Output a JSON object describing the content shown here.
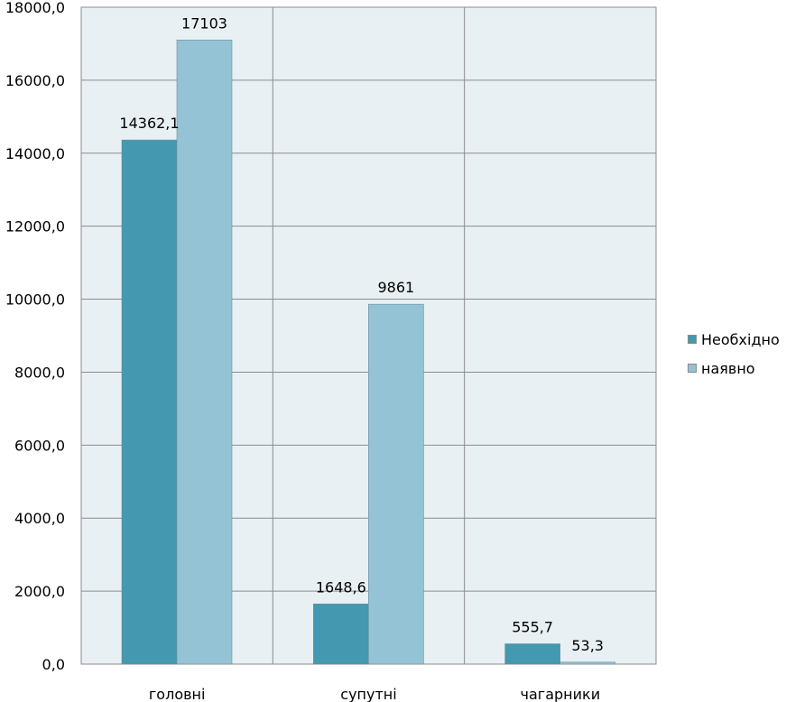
{
  "chart_data": {
    "type": "bar",
    "categories": [
      "головні",
      "супутні",
      "чагарники"
    ],
    "series": [
      {
        "name": "Необхідно",
        "values": [
          14362.1,
          1648.6,
          555.7
        ],
        "labels": [
          "14362,1",
          "1648,6",
          "555,7"
        ],
        "color": "#4499b0"
      },
      {
        "name": "наявно",
        "values": [
          17103,
          9861,
          53.3
        ],
        "labels": [
          "17103",
          "9861",
          "53,3"
        ],
        "color": "#93c3d5"
      }
    ],
    "ylim": [
      0,
      18000
    ],
    "yticks": [
      0,
      2000,
      4000,
      6000,
      8000,
      10000,
      12000,
      14000,
      16000,
      18000
    ],
    "ytick_labels": [
      "0,0",
      "2000,0",
      "4000,0",
      "6000,0",
      "8000,0",
      "10000,0",
      "12000,0",
      "14000,0",
      "16000,0",
      "18000,0"
    ],
    "plot_background": "#e8f0f4",
    "grid": true,
    "legend_position": "right"
  }
}
